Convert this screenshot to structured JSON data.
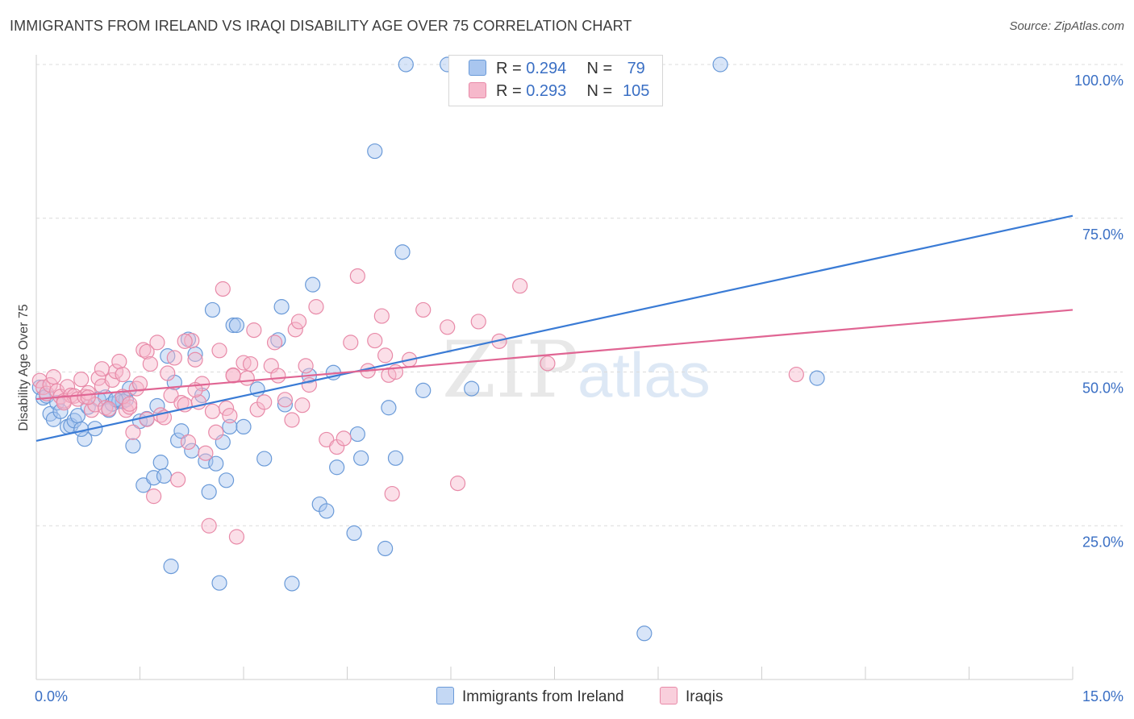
{
  "title": "IMMIGRANTS FROM IRELAND VS IRAQI DISABILITY AGE OVER 75 CORRELATION CHART",
  "source": "Source: ZipAtlas.com",
  "watermark": {
    "zip": "ZIP",
    "atlas": "atlas"
  },
  "legend_stats": [
    {
      "r_label": "R =",
      "r_value": "0.294",
      "n_label": "N =",
      "n_value": "79",
      "color": "#a9c6ef",
      "stroke": "#6a9ad8"
    },
    {
      "r_label": "R =",
      "r_value": "0.293",
      "n_label": "N =",
      "n_value": "105",
      "color": "#f6b8cb",
      "stroke": "#e88aa8"
    }
  ],
  "chart_data": {
    "type": "scatter",
    "title": "IMMIGRANTS FROM IRELAND VS IRAQI DISABILITY AGE OVER 75 CORRELATION CHART",
    "xlabel": "",
    "ylabel": "Disability Age Over 75",
    "xlim": [
      0,
      15
    ],
    "ylim": [
      0,
      100
    ],
    "x_tick_labels": [
      "0.0%",
      "15.0%"
    ],
    "y_tick_labels": [
      "25.0%",
      "50.0%",
      "75.0%",
      "100.0%"
    ],
    "y_ticks": [
      25,
      50,
      75,
      100
    ],
    "grid": true,
    "legend_position": "bottom",
    "series": [
      {
        "name": "Immigrants from Ireland",
        "color": "#a9c6ef",
        "stroke": "#6a9ad8",
        "trend_color": "#3a7bd5",
        "trend": [
          [
            0,
            38.8
          ],
          [
            15,
            75.4
          ]
        ],
        "points": [
          [
            0.05,
            47.5
          ],
          [
            0.1,
            45.8
          ],
          [
            0.15,
            46.1
          ],
          [
            0.2,
            43.2
          ],
          [
            0.25,
            42.3
          ],
          [
            0.3,
            45.0
          ],
          [
            0.35,
            43.6
          ],
          [
            0.45,
            41.1
          ],
          [
            0.5,
            41.3
          ],
          [
            0.55,
            42.1
          ],
          [
            0.6,
            42.9
          ],
          [
            0.7,
            39.1
          ],
          [
            0.75,
            44.3
          ],
          [
            0.85,
            40.8
          ],
          [
            0.9,
            45.6
          ],
          [
            1.0,
            45.9
          ],
          [
            1.05,
            43.8
          ],
          [
            1.1,
            44.8
          ],
          [
            1.2,
            45.3
          ],
          [
            1.25,
            45.2
          ],
          [
            1.3,
            45.5
          ],
          [
            1.35,
            47.3
          ],
          [
            1.4,
            38.0
          ],
          [
            1.5,
            42.0
          ],
          [
            1.55,
            31.6
          ],
          [
            1.6,
            42.4
          ],
          [
            1.7,
            32.8
          ],
          [
            1.75,
            44.5
          ],
          [
            1.8,
            35.3
          ],
          [
            1.85,
            33.1
          ],
          [
            1.9,
            52.6
          ],
          [
            1.95,
            18.4
          ],
          [
            2.0,
            48.3
          ],
          [
            2.05,
            38.9
          ],
          [
            2.1,
            40.4
          ],
          [
            2.2,
            55.3
          ],
          [
            2.25,
            37.2
          ],
          [
            2.3,
            52.9
          ],
          [
            2.4,
            46.2
          ],
          [
            2.45,
            35.5
          ],
          [
            2.5,
            30.5
          ],
          [
            2.55,
            60.1
          ],
          [
            2.6,
            35.1
          ],
          [
            2.65,
            15.7
          ],
          [
            2.7,
            38.6
          ],
          [
            2.75,
            32.4
          ],
          [
            2.8,
            41.1
          ],
          [
            2.85,
            57.6
          ],
          [
            2.9,
            57.6
          ],
          [
            3.0,
            41.1
          ],
          [
            3.2,
            47.2
          ],
          [
            3.3,
            35.9
          ],
          [
            3.5,
            55.2
          ],
          [
            3.55,
            60.6
          ],
          [
            3.6,
            44.7
          ],
          [
            3.7,
            15.6
          ],
          [
            3.95,
            49.4
          ],
          [
            4.0,
            64.2
          ],
          [
            4.1,
            28.5
          ],
          [
            4.2,
            27.4
          ],
          [
            4.3,
            49.9
          ],
          [
            4.35,
            34.5
          ],
          [
            4.6,
            23.8
          ],
          [
            4.65,
            39.9
          ],
          [
            4.7,
            36.0
          ],
          [
            4.9,
            85.9
          ],
          [
            5.05,
            21.3
          ],
          [
            5.1,
            44.2
          ],
          [
            5.2,
            36.0
          ],
          [
            5.3,
            69.5
          ],
          [
            5.35,
            100.0
          ],
          [
            5.6,
            47.0
          ],
          [
            5.95,
            100.0
          ],
          [
            6.3,
            47.3
          ],
          [
            9.9,
            100.0
          ],
          [
            11.3,
            49.0
          ],
          [
            8.8,
            7.5
          ],
          [
            0.65,
            40.7
          ],
          [
            1.15,
            45.5
          ]
        ]
      },
      {
        "name": "Iraqis",
        "color": "#f6b8cb",
        "stroke": "#e88aa8",
        "trend_color": "#e06593",
        "trend": [
          [
            0,
            45.6
          ],
          [
            15,
            60.1
          ]
        ],
        "points": [
          [
            0.05,
            48.6
          ],
          [
            0.1,
            47.5
          ],
          [
            0.15,
            46.5
          ],
          [
            0.2,
            47.9
          ],
          [
            0.25,
            49.2
          ],
          [
            0.3,
            46.9
          ],
          [
            0.35,
            46.0
          ],
          [
            0.4,
            45.3
          ],
          [
            0.45,
            47.6
          ],
          [
            0.5,
            46.2
          ],
          [
            0.55,
            46.1
          ],
          [
            0.6,
            45.6
          ],
          [
            0.65,
            48.8
          ],
          [
            0.7,
            46.0
          ],
          [
            0.75,
            46.6
          ],
          [
            0.8,
            43.8
          ],
          [
            0.85,
            44.7
          ],
          [
            0.9,
            49.0
          ],
          [
            0.95,
            47.7
          ],
          [
            1.0,
            44.2
          ],
          [
            1.05,
            44.0
          ],
          [
            1.1,
            48.7
          ],
          [
            1.15,
            50.1
          ],
          [
            1.2,
            51.7
          ],
          [
            1.25,
            49.6
          ],
          [
            1.3,
            43.8
          ],
          [
            1.35,
            44.3
          ],
          [
            1.4,
            40.2
          ],
          [
            1.45,
            47.3
          ],
          [
            1.5,
            48.1
          ],
          [
            1.55,
            53.6
          ],
          [
            1.6,
            53.3
          ],
          [
            1.65,
            51.3
          ],
          [
            1.7,
            29.8
          ],
          [
            1.75,
            54.8
          ],
          [
            1.8,
            43.0
          ],
          [
            1.85,
            42.6
          ],
          [
            1.9,
            49.8
          ],
          [
            1.95,
            46.2
          ],
          [
            2.0,
            52.3
          ],
          [
            2.05,
            32.5
          ],
          [
            2.1,
            45.0
          ],
          [
            2.15,
            44.7
          ],
          [
            2.2,
            38.6
          ],
          [
            2.25,
            55.1
          ],
          [
            2.3,
            52.0
          ],
          [
            2.35,
            45.1
          ],
          [
            2.4,
            48.1
          ],
          [
            2.45,
            36.8
          ],
          [
            2.5,
            25.0
          ],
          [
            2.55,
            43.6
          ],
          [
            2.6,
            40.2
          ],
          [
            2.65,
            53.5
          ],
          [
            2.7,
            63.5
          ],
          [
            2.75,
            44.1
          ],
          [
            2.8,
            42.9
          ],
          [
            2.85,
            49.5
          ],
          [
            2.9,
            23.2
          ],
          [
            3.0,
            51.5
          ],
          [
            3.05,
            49.0
          ],
          [
            3.1,
            51.3
          ],
          [
            3.15,
            56.8
          ],
          [
            3.2,
            43.9
          ],
          [
            3.3,
            45.1
          ],
          [
            3.4,
            51.0
          ],
          [
            3.5,
            49.4
          ],
          [
            3.6,
            45.5
          ],
          [
            3.7,
            42.2
          ],
          [
            3.75,
            56.9
          ],
          [
            3.8,
            58.2
          ],
          [
            3.85,
            44.6
          ],
          [
            3.9,
            51.0
          ],
          [
            3.95,
            47.9
          ],
          [
            4.05,
            60.6
          ],
          [
            4.2,
            39.0
          ],
          [
            4.35,
            37.8
          ],
          [
            4.45,
            39.2
          ],
          [
            4.55,
            54.8
          ],
          [
            4.65,
            65.6
          ],
          [
            4.8,
            50.2
          ],
          [
            4.9,
            55.1
          ],
          [
            5.0,
            59.1
          ],
          [
            5.05,
            52.7
          ],
          [
            5.1,
            49.5
          ],
          [
            5.15,
            30.2
          ],
          [
            5.2,
            50.0
          ],
          [
            5.4,
            52.0
          ],
          [
            5.6,
            60.1
          ],
          [
            5.95,
            57.3
          ],
          [
            6.1,
            31.9
          ],
          [
            6.4,
            58.2
          ],
          [
            6.7,
            55.0
          ],
          [
            7.0,
            64.0
          ],
          [
            7.4,
            51.4
          ],
          [
            11.0,
            49.6
          ],
          [
            1.25,
            46.0
          ],
          [
            0.95,
            50.5
          ],
          [
            2.15,
            55.0
          ],
          [
            1.6,
            42.3
          ],
          [
            0.75,
            45.9
          ],
          [
            1.35,
            44.8
          ],
          [
            2.85,
            49.4
          ],
          [
            3.45,
            54.8
          ],
          [
            0.4,
            45.0
          ],
          [
            2.3,
            47.1
          ]
        ]
      }
    ]
  }
}
